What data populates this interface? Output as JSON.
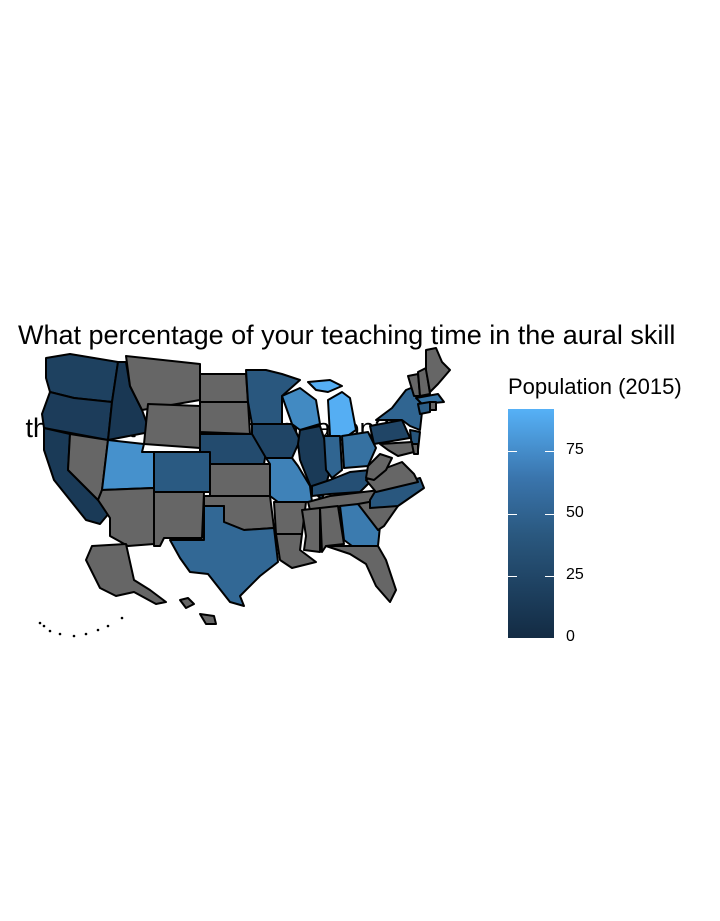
{
  "title_line1": "What percentage of your teaching time in the aural skill",
  "title_line2": " that don't depend on notation?",
  "legend": {
    "title": "Population (2015)",
    "ticks": [
      "75",
      "50",
      "25",
      "0"
    ],
    "tick_values": [
      75,
      50,
      25,
      0
    ],
    "range": [
      0,
      92
    ],
    "low_color": "#132b43",
    "high_color": "#56b1f7"
  },
  "colors": {
    "missing": "#666666",
    "border": "#000000"
  },
  "chart_data": {
    "type": "choropleth",
    "title": "What percentage of your teaching time in the aural skill that don't depend on notation?",
    "legend_title": "Population (2015)",
    "scale": [
      0,
      92
    ],
    "values": {
      "WA": 15,
      "OR": 12,
      "CA": 10,
      "ID": 8,
      "UT": 70,
      "CO": 32,
      "NE": 22,
      "IA": 18,
      "MN": 30,
      "WI": 65,
      "IL": 10,
      "MI": 90,
      "IN": 40,
      "OH": 48,
      "KY": 25,
      "MO": 60,
      "TX": 42,
      "GA": 55,
      "NC": 30,
      "PA": 18,
      "NY": 40,
      "NJ": 28,
      "MA": 50,
      "CT": 35
    }
  }
}
